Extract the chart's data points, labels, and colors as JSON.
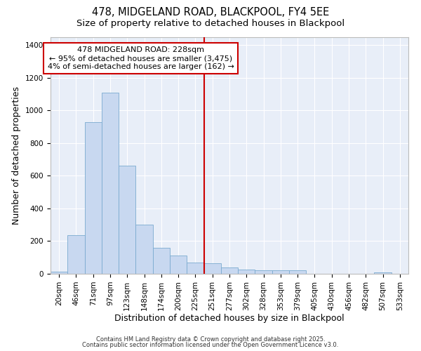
{
  "title": "478, MIDGELAND ROAD, BLACKPOOL, FY4 5EE",
  "subtitle": "Size of property relative to detached houses in Blackpool",
  "xlabel": "Distribution of detached houses by size in Blackpool",
  "ylabel": "Number of detached properties",
  "bar_color": "#c8d8f0",
  "bar_edge_color": "#7aaad0",
  "background_color": "#e8eef8",
  "grid_color": "#ffffff",
  "categories": [
    "20sqm",
    "46sqm",
    "71sqm",
    "97sqm",
    "123sqm",
    "148sqm",
    "174sqm",
    "200sqm",
    "225sqm",
    "251sqm",
    "277sqm",
    "302sqm",
    "328sqm",
    "353sqm",
    "379sqm",
    "405sqm",
    "430sqm",
    "456sqm",
    "482sqm",
    "507sqm",
    "533sqm"
  ],
  "values": [
    15,
    235,
    930,
    1110,
    660,
    300,
    160,
    110,
    70,
    65,
    40,
    25,
    20,
    20,
    20,
    0,
    0,
    0,
    0,
    10,
    0
  ],
  "vline_index": 8,
  "vline_color": "#cc0000",
  "annotation_title": "478 MIDGELAND ROAD: 228sqm",
  "annotation_line2": "← 95% of detached houses are smaller (3,475)",
  "annotation_line3": "4% of semi-detached houses are larger (162) →",
  "ylim": [
    0,
    1450
  ],
  "yticks": [
    0,
    200,
    400,
    600,
    800,
    1000,
    1200,
    1400
  ],
  "footer_line1": "Contains HM Land Registry data © Crown copyright and database right 2025.",
  "footer_line2": "Contains public sector information licensed under the Open Government Licence v3.0.",
  "title_fontsize": 10.5,
  "subtitle_fontsize": 9.5,
  "axis_label_fontsize": 9,
  "tick_fontsize": 7.5,
  "annotation_fontsize": 8,
  "footer_fontsize": 6
}
